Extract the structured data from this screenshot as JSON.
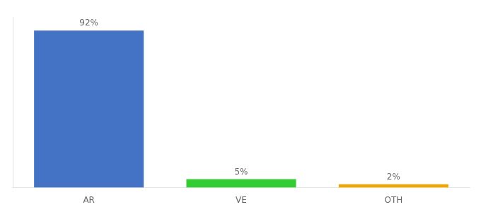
{
  "chart_data": {
    "type": "bar",
    "categories": [
      "AR",
      "VE",
      "OTH"
    ],
    "values": [
      92,
      5,
      2
    ],
    "value_labels": [
      "92%",
      "5%",
      "2%"
    ],
    "colors": [
      "#4472c4",
      "#33cc33",
      "#f0a500"
    ],
    "ylim": [
      0,
      100
    ],
    "data_labels": true,
    "tick_labels": "x",
    "grid": false
  }
}
